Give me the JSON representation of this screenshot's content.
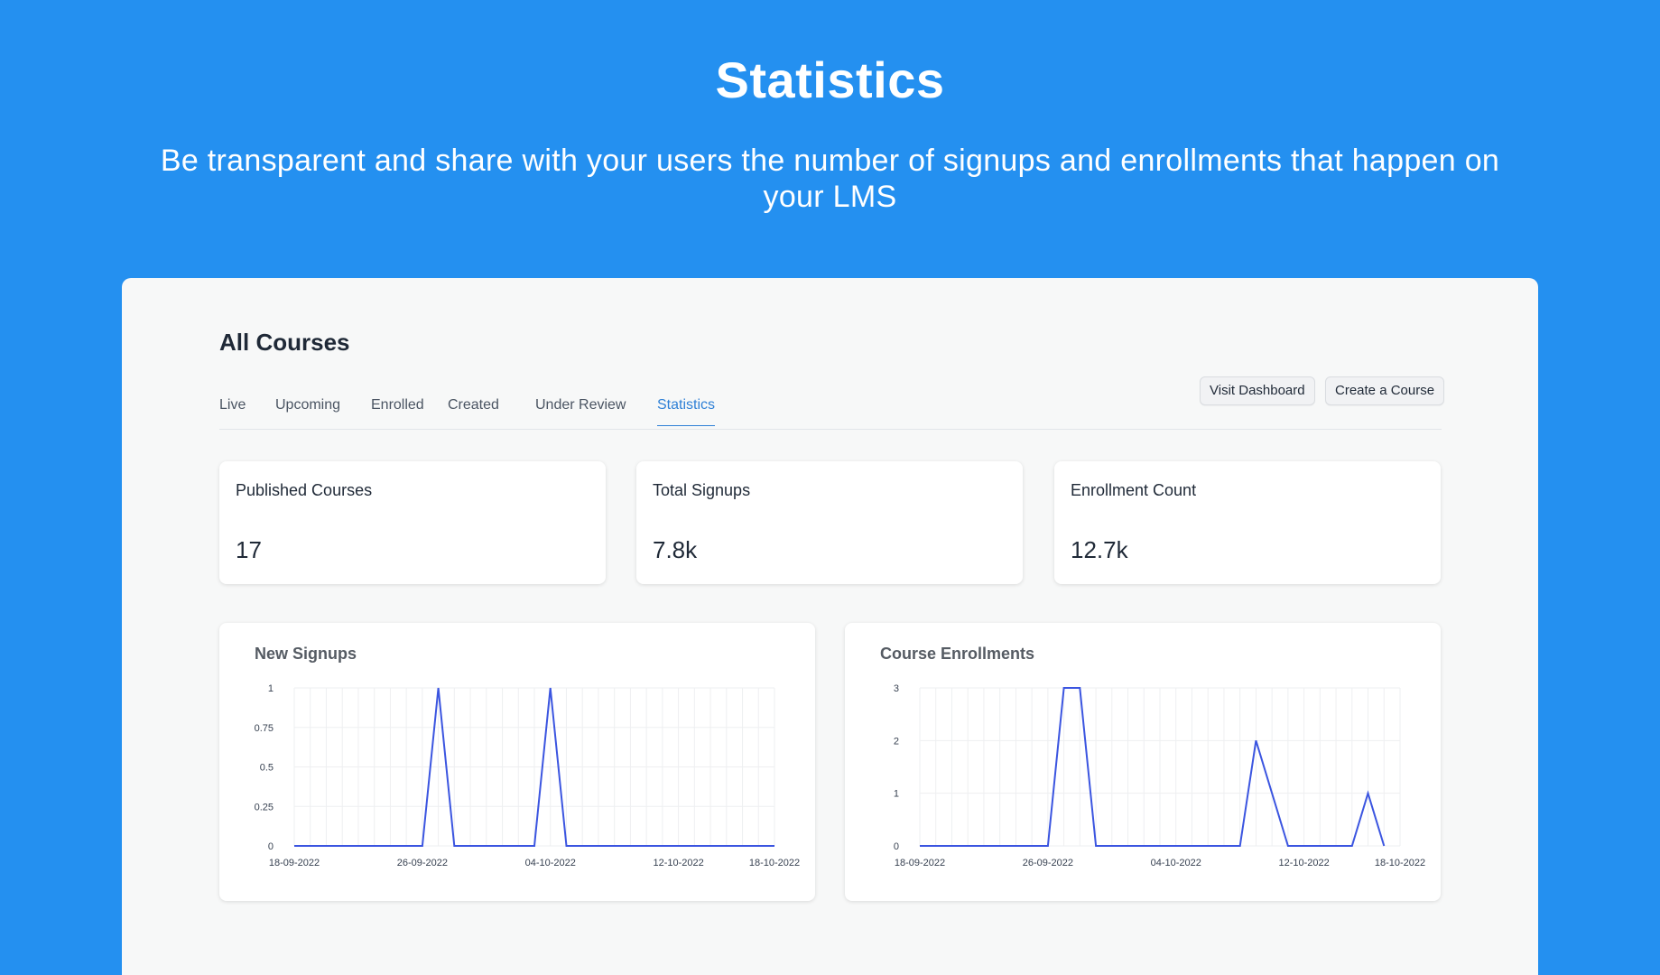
{
  "hero": {
    "title": "Statistics",
    "subtitle": "Be transparent and share with your users the number of signups and enrollments that happen on your LMS"
  },
  "page": {
    "title": "All Courses"
  },
  "tabs": [
    {
      "label": "Live",
      "active": false
    },
    {
      "label": "Upcoming",
      "active": false
    },
    {
      "label": "Enrolled",
      "active": false
    },
    {
      "label": "Created",
      "active": false
    },
    {
      "label": "Under Review",
      "active": false
    },
    {
      "label": "Statistics",
      "active": true
    }
  ],
  "actions": {
    "visit_dashboard": "Visit Dashboard",
    "create_course": "Create a Course"
  },
  "stats": [
    {
      "label": "Published Courses",
      "value": "17"
    },
    {
      "label": "Total Signups",
      "value": "7.8k"
    },
    {
      "label": "Enrollment Count",
      "value": "12.7k"
    }
  ],
  "colors": {
    "hero_background": "#2490F0",
    "accent": "#2F80D6",
    "line": "#3B55E0"
  },
  "chart_data": [
    {
      "type": "line",
      "title": "New Signups",
      "xlabel": "",
      "ylabel": "",
      "x_tick_labels": [
        "18-09-2022",
        "26-09-2022",
        "04-10-2022",
        "12-10-2022",
        "18-10-2022"
      ],
      "y_tick_labels": [
        "0",
        "0.25",
        "0.5",
        "0.75",
        "1"
      ],
      "ylim": [
        0,
        1
      ],
      "xlim": [
        "2022-09-18",
        "2022-10-18"
      ],
      "grid": true,
      "series": [
        {
          "x": [
            "2022-09-18",
            "2022-09-26",
            "2022-09-27",
            "2022-09-28",
            "2022-10-03",
            "2022-10-04",
            "2022-10-05",
            "2022-10-18"
          ],
          "values": [
            0,
            0,
            1,
            0,
            0,
            1,
            0,
            0
          ]
        }
      ]
    },
    {
      "type": "line",
      "title": "Course Enrollments",
      "xlabel": "",
      "ylabel": "",
      "x_tick_labels": [
        "18-09-2022",
        "26-09-2022",
        "04-10-2022",
        "12-10-2022",
        "18-10-2022"
      ],
      "y_tick_labels": [
        "0",
        "1",
        "2",
        "3"
      ],
      "ylim": [
        0,
        3
      ],
      "xlim": [
        "2022-09-18",
        "2022-10-18"
      ],
      "grid": true,
      "series": [
        {
          "x": [
            "2022-09-18",
            "2022-09-26",
            "2022-09-27",
            "2022-09-28",
            "2022-09-29",
            "2022-10-08",
            "2022-10-09",
            "2022-10-11",
            "2022-10-15",
            "2022-10-16",
            "2022-10-17"
          ],
          "values": [
            0,
            0,
            3,
            3,
            0,
            0,
            2,
            0,
            0,
            1,
            0
          ]
        }
      ]
    }
  ]
}
